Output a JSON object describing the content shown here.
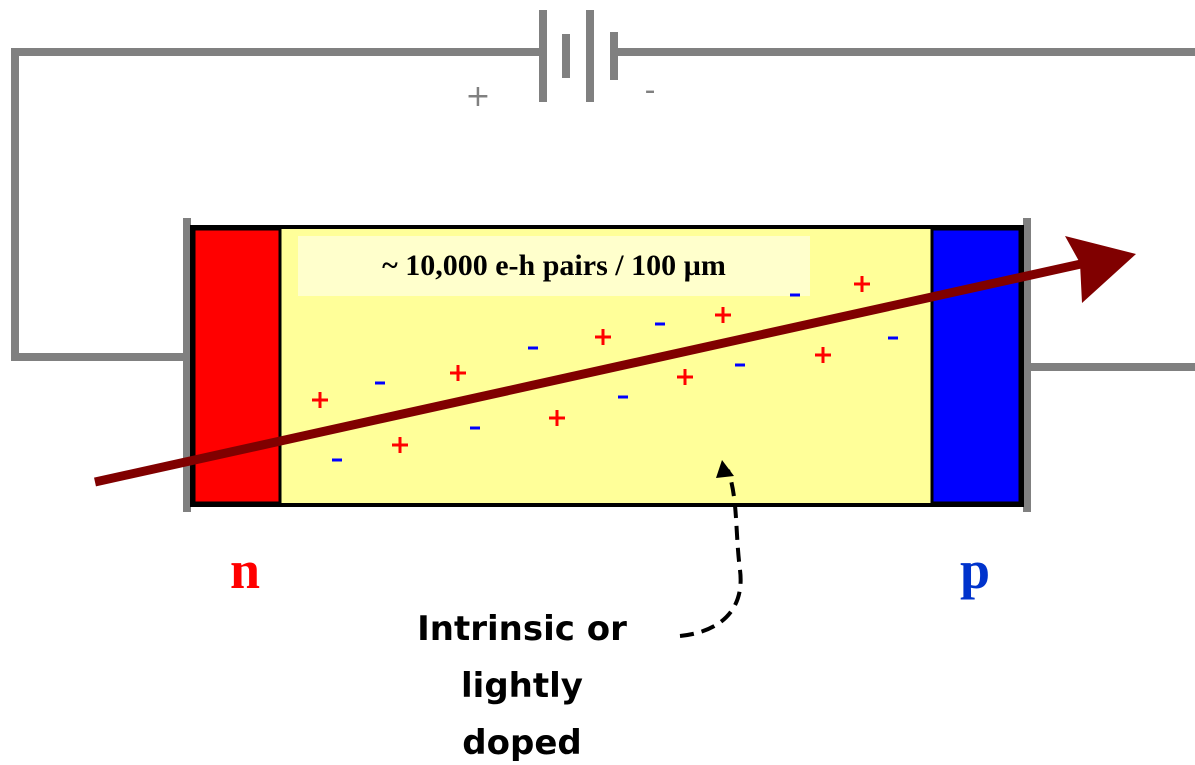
{
  "battery": {
    "plus_label": "+",
    "minus_label": "-"
  },
  "detector": {
    "caption": "~ 10,000 e-h pairs / 100 µm",
    "n_label": "n",
    "p_label": "p"
  },
  "annotation": {
    "lines": [
      "Intrinsic or",
      "lightly",
      "doped"
    ]
  }
}
